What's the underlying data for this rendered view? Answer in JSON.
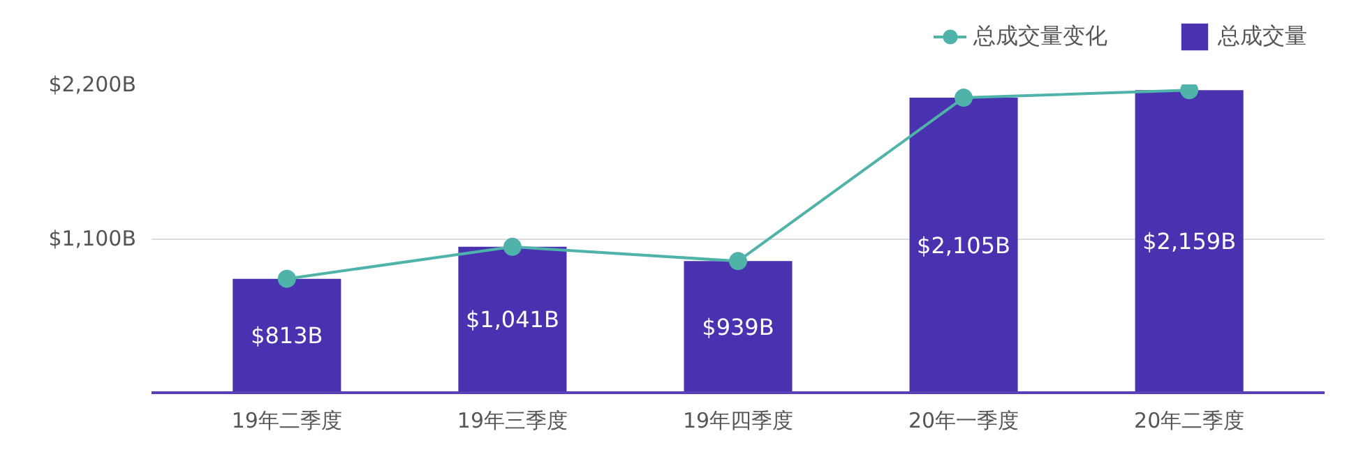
{
  "chart_data": {
    "type": "bar",
    "categories": [
      "19年二季度",
      "19年三季度",
      "19年四季度",
      "20年一季度",
      "20年二季度"
    ],
    "series": [
      {
        "name": "总成交量变化",
        "type": "line",
        "color": "#4fb3aa",
        "values": [
          813,
          1041,
          939,
          2105,
          2159
        ],
        "marker": "circle"
      },
      {
        "name": "总成交量",
        "color": "#4a31b0",
        "values": [
          813,
          1041,
          939,
          2105,
          2159
        ],
        "value_labels": [
          "$813B",
          "$1,041B",
          "$939B",
          "$2,105B",
          "$2,159B"
        ]
      }
    ],
    "ylim": [
      0,
      2200
    ],
    "yticks": [
      {
        "value": 1100,
        "label": "$1,100B"
      },
      {
        "value": 2200,
        "label": "$2,200B"
      }
    ],
    "grid": "y",
    "legend": "top right"
  }
}
